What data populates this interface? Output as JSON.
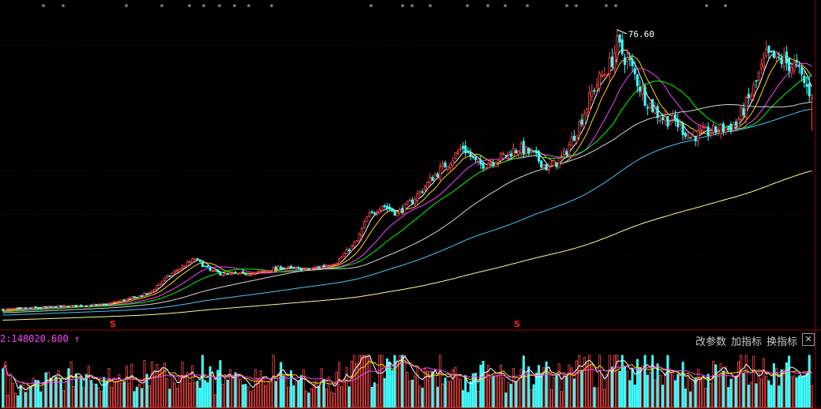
{
  "chart_data": {
    "type": "candlestick",
    "title": "",
    "price_panel": {
      "ylim": [
        10,
        82
      ],
      "grid": true,
      "max_label": "76.60",
      "max_value": 76.6,
      "last_close": 62.0,
      "event_markers": [
        "S",
        "S"
      ]
    },
    "ma_lines": [
      {
        "name": "MA5",
        "color": "#ffffff"
      },
      {
        "name": "MA10",
        "color": "#ffd700"
      },
      {
        "name": "MA20",
        "color": "#ff40ff"
      },
      {
        "name": "MA30",
        "color": "#00ff00"
      },
      {
        "name": "MA60",
        "color": "#d8d8d8"
      },
      {
        "name": "MA120",
        "color": "#40c8ff"
      },
      {
        "name": "MA250",
        "color": "#ffff90"
      }
    ],
    "price_anchors": [
      [
        0,
        14.2
      ],
      [
        20,
        14.8
      ],
      [
        40,
        15.3
      ],
      [
        50,
        16.6
      ],
      [
        58,
        17.9
      ],
      [
        63,
        20.6
      ],
      [
        70,
        23.4
      ],
      [
        76,
        25.5
      ],
      [
        82,
        22.8
      ],
      [
        88,
        22.0
      ],
      [
        100,
        22.3
      ],
      [
        110,
        23.6
      ],
      [
        120,
        23.0
      ],
      [
        132,
        24.8
      ],
      [
        140,
        29.4
      ],
      [
        144,
        34.6
      ],
      [
        150,
        37.5
      ],
      [
        156,
        35.6
      ],
      [
        162,
        38.4
      ],
      [
        170,
        43.6
      ],
      [
        178,
        48.0
      ],
      [
        182,
        50.4
      ],
      [
        188,
        46.2
      ],
      [
        196,
        47.8
      ],
      [
        204,
        50.2
      ],
      [
        210,
        48.5
      ],
      [
        216,
        45.4
      ],
      [
        222,
        48.5
      ],
      [
        228,
        55.4
      ],
      [
        234,
        63.8
      ],
      [
        240,
        68.5
      ],
      [
        243,
        73.0
      ],
      [
        248,
        68.8
      ],
      [
        254,
        61.3
      ],
      [
        260,
        57.0
      ],
      [
        266,
        55.9
      ],
      [
        272,
        52.6
      ],
      [
        278,
        53.5
      ],
      [
        284,
        54.3
      ],
      [
        290,
        55.4
      ],
      [
        296,
        62.0
      ],
      [
        302,
        70.4
      ],
      [
        308,
        69.6
      ],
      [
        314,
        68.0
      ],
      [
        318,
        63.5
      ],
      [
        320,
        62.0
      ]
    ],
    "volume_panel": {
      "indicator_label": "2:148020.600",
      "trend_arrow": "↑",
      "tools": [
        "改参数",
        "加指标",
        "换指标"
      ],
      "close_symbol": "✕"
    },
    "top_markers": [
      "*",
      "*",
      "*",
      "*",
      "*",
      "*",
      "*",
      "*",
      "*",
      "*",
      "*",
      "*",
      "*",
      "*"
    ]
  },
  "colors": {
    "up": "#ff4a4a",
    "down": "#40ffff",
    "grid": "#3a0000",
    "frame": "#9a0000",
    "marker_red": "#ff2020",
    "text_white": "#ffffff"
  }
}
